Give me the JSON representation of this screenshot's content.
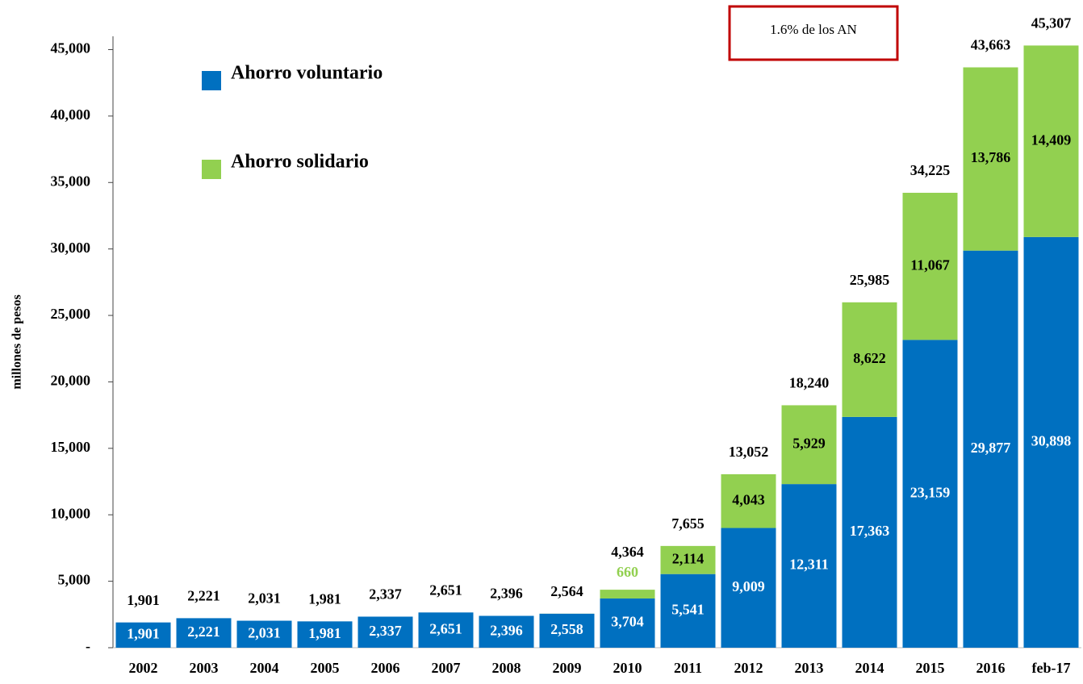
{
  "chart_data": {
    "type": "stacked_bar",
    "y_label": "millones de pesos",
    "annotation": "1.6% de los AN",
    "categories": [
      "2002",
      "2003",
      "2004",
      "2005",
      "2006",
      "2007",
      "2008",
      "2009",
      "2010",
      "2011",
      "2012",
      "2013",
      "2014",
      "2015",
      "2016",
      "feb-17"
    ],
    "series": [
      {
        "name": "Ahorro voluntario",
        "color": "#0070c0",
        "values": [
          1901,
          2221,
          2031,
          1981,
          2337,
          2651,
          2396,
          2558,
          3704,
          5541,
          9009,
          12311,
          17363,
          23159,
          29877,
          30898
        ],
        "value_labels": [
          "1,901",
          "2,221",
          "2,031",
          "1,981",
          "2,337",
          "2,651",
          "2,396",
          "2,558",
          "3,704",
          "5,541",
          "9,009",
          "12,311",
          "17,363",
          "23,159",
          "29,877",
          "30,898"
        ]
      },
      {
        "name": "Ahorro solidario",
        "color": "#92d050",
        "values": [
          0,
          0,
          0,
          0,
          0,
          0,
          0,
          6,
          660,
          2114,
          4043,
          5929,
          8622,
          11067,
          13786,
          14409
        ],
        "value_labels": [
          null,
          null,
          null,
          null,
          null,
          null,
          null,
          null,
          "660",
          "2,114",
          "4,043",
          "5,929",
          "8,622",
          "11,067",
          "13,786",
          "14,409"
        ]
      }
    ],
    "totals": {
      "values": [
        1901,
        2221,
        2031,
        1981,
        2337,
        2651,
        2396,
        2564,
        4364,
        7655,
        13052,
        18240,
        25985,
        34225,
        43663,
        45307
      ],
      "value_labels": [
        "1,901",
        "2,221",
        "2,031",
        "1,981",
        "2,337",
        "2,651",
        "2,396",
        "2,564",
        "4,364",
        "7,655",
        "13,052",
        "18,240",
        "25,985",
        "34,225",
        "43,663",
        "45,307"
      ]
    },
    "ylim": [
      0,
      46000
    ],
    "yticks": [
      {
        "value": 0,
        "label": "-"
      },
      {
        "value": 5000,
        "label": "5,000"
      },
      {
        "value": 10000,
        "label": "10,000"
      },
      {
        "value": 15000,
        "label": "15,000"
      },
      {
        "value": 20000,
        "label": "20,000"
      },
      {
        "value": 25000,
        "label": "25,000"
      },
      {
        "value": 30000,
        "label": "30,000"
      },
      {
        "value": 35000,
        "label": "35,000"
      },
      {
        "value": 40000,
        "label": "40,000"
      },
      {
        "value": 45000,
        "label": "45,000"
      }
    ]
  }
}
